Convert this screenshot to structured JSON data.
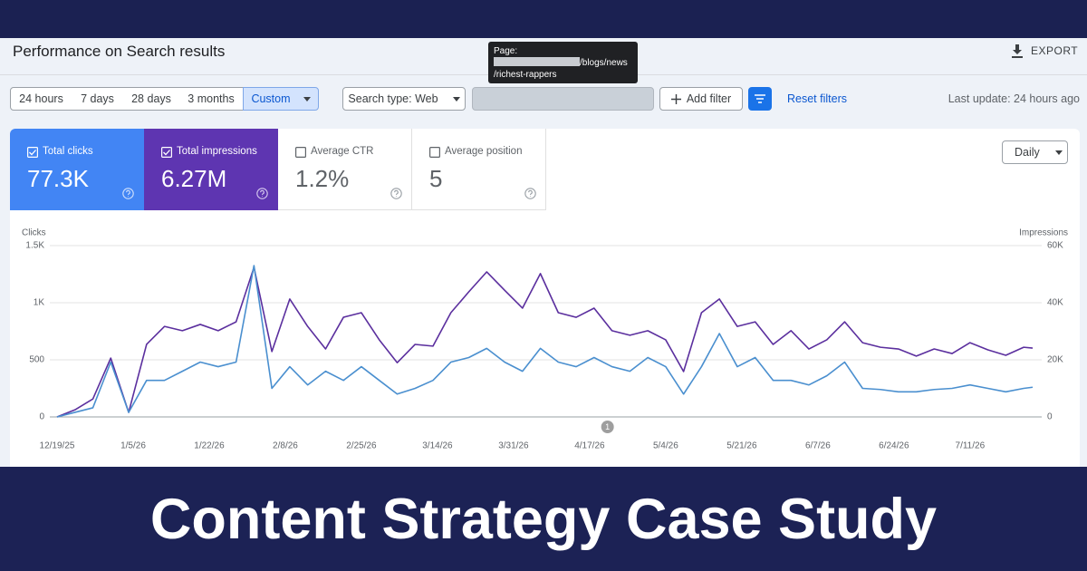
{
  "header": {
    "title": "Performance on Search results",
    "export": "EXPORT"
  },
  "tooltip": {
    "label": "Page:",
    "path_1": "/blogs/news",
    "path_2": "/richest-rappers"
  },
  "toolbar": {
    "date_ranges": [
      "24 hours",
      "7 days",
      "28 days",
      "3 months",
      "Custom"
    ],
    "search_type": "Search type: Web",
    "add_filter": "Add filter",
    "reset_filters": "Reset filters",
    "last_update": "Last update: 24 hours ago"
  },
  "metrics": [
    {
      "label": "Total clicks",
      "value": "77.3K"
    },
    {
      "label": "Total impressions",
      "value": "6.27M"
    },
    {
      "label": "Average CTR",
      "value": "1.2%"
    },
    {
      "label": "Average position",
      "value": "5"
    }
  ],
  "granularity": "Daily",
  "chart_data": {
    "type": "line",
    "x": [
      "12/19/25",
      "12/23/25",
      "12/27/25",
      "12/31/25",
      "1/4/26",
      "1/8/26",
      "1/12/26",
      "1/16/26",
      "1/20/26",
      "1/24/26",
      "1/28/26",
      "2/1/26",
      "2/5/26",
      "2/9/26",
      "2/13/26",
      "2/17/26",
      "2/21/26",
      "2/25/26",
      "3/1/26",
      "3/5/26",
      "3/9/26",
      "3/13/26",
      "3/17/26",
      "3/21/26",
      "3/25/26",
      "3/29/26",
      "4/2/26",
      "4/6/26",
      "4/10/26",
      "4/14/26",
      "4/18/26",
      "4/22/26",
      "4/26/26",
      "4/30/26",
      "5/4/26",
      "5/8/26",
      "5/12/26",
      "5/16/26",
      "5/20/26",
      "5/24/26",
      "5/28/26",
      "6/1/26",
      "6/5/26",
      "6/9/26",
      "6/13/26",
      "6/17/26",
      "6/21/26",
      "6/25/26",
      "6/29/26",
      "7/3/26",
      "7/7/26",
      "7/11/26",
      "7/15/26",
      "7/19/26",
      "7/23/26",
      "7/25/26"
    ],
    "xlim": [
      "12/19/25",
      "7/25/26"
    ],
    "xticks": [
      "12/19/25",
      "1/5/26",
      "1/22/26",
      "2/8/26",
      "2/25/26",
      "3/14/26",
      "3/31/26",
      "4/17/26",
      "5/4/26",
      "5/21/26",
      "6/7/26",
      "6/24/26",
      "7/11/26"
    ],
    "ylim": [
      0,
      1500
    ],
    "yticks": [
      0,
      500,
      {
        "value": 1000,
        "label": "1K"
      },
      {
        "value": 1500,
        "label": "1.5K"
      }
    ],
    "y2lim": [
      0,
      60000
    ],
    "y2ticks": [
      0,
      {
        "value": 20000,
        "label": "20K"
      },
      {
        "value": 40000,
        "label": "40K"
      },
      {
        "value": 60000,
        "label": "60K"
      }
    ],
    "grid": true,
    "series": [
      {
        "name": "Clicks",
        "color": "#4a8fcf",
        "values": [
          0,
          40,
          80,
          480,
          40,
          320,
          320,
          400,
          480,
          440,
          480,
          1325,
          250,
          440,
          280,
          400,
          320,
          440,
          320,
          200,
          250,
          320,
          480,
          520,
          600,
          480,
          400,
          600,
          480,
          440,
          520,
          440,
          400,
          520,
          440,
          200,
          440,
          730,
          440,
          520,
          320,
          320,
          280,
          360,
          480,
          250,
          240,
          220,
          220,
          240,
          250,
          280,
          250,
          220,
          250,
          260
        ]
      },
      {
        "name": "Impressions",
        "color": "#5b2f9e",
        "axis": "y2",
        "values": [
          0,
          2500,
          6300,
          20600,
          1600,
          25400,
          31700,
          30200,
          32400,
          30200,
          33300,
          52400,
          22900,
          41300,
          31700,
          23800,
          34900,
          36500,
          27000,
          19000,
          25400,
          24800,
          36500,
          43800,
          50800,
          44400,
          38100,
          50200,
          36500,
          34900,
          38100,
          30200,
          28600,
          30200,
          27000,
          15900,
          36500,
          41300,
          31700,
          33300,
          25400,
          30200,
          23800,
          27000,
          33300,
          26000,
          24400,
          23800,
          21300,
          23800,
          22200,
          26000,
          23500,
          21600,
          24400,
          24100
        ]
      }
    ],
    "annotations": [
      {
        "x": "4/21/26",
        "label": "1"
      }
    ]
  },
  "banner": {
    "title": "Content Strategy Case Study"
  }
}
